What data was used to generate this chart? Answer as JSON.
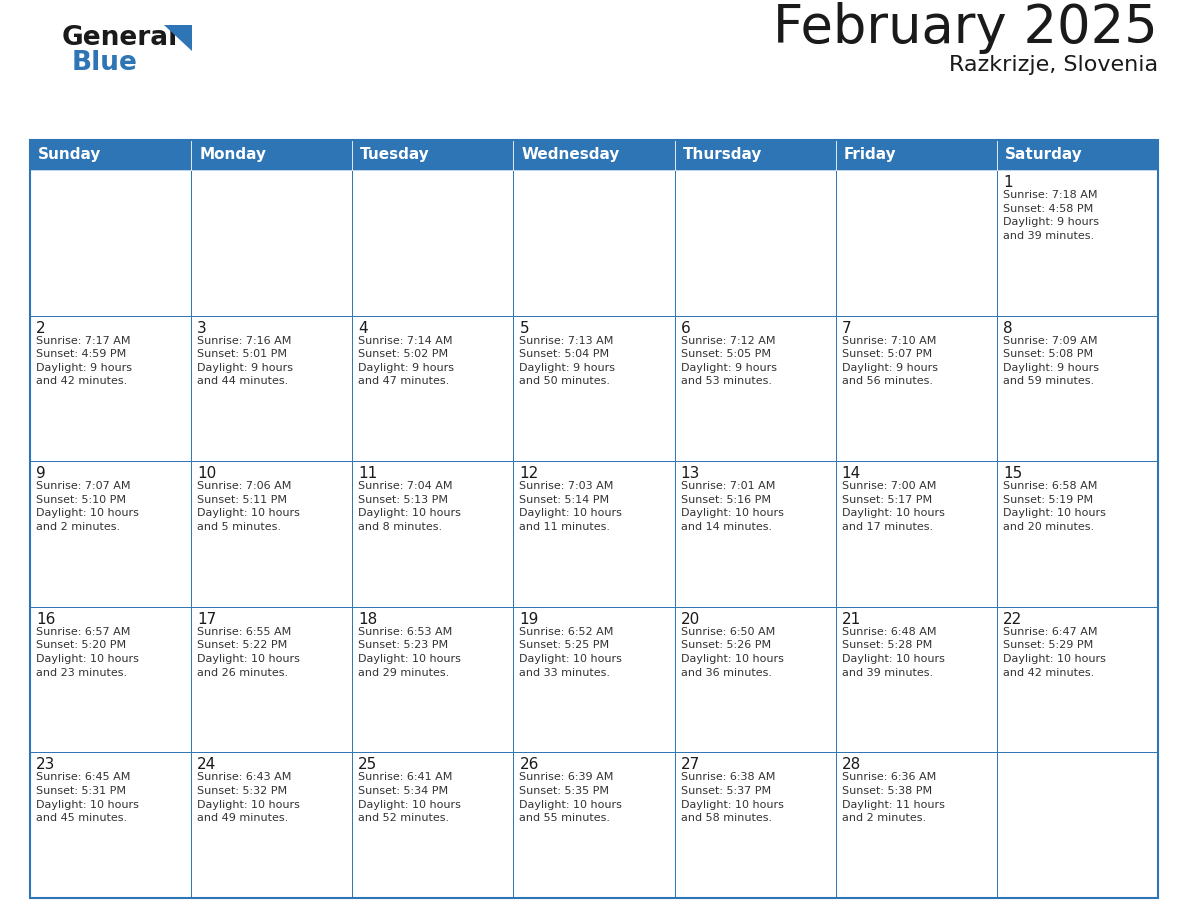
{
  "title": "February 2025",
  "subtitle": "Razkrizje, Slovenia",
  "header_bg": "#2E75B6",
  "header_text_color": "#FFFFFF",
  "border_color": "#2E75B6",
  "cell_bg": "#FFFFFF",
  "text_color": "#333333",
  "day_num_color": "#1a1a1a",
  "days_of_week": [
    "Sunday",
    "Monday",
    "Tuesday",
    "Wednesday",
    "Thursday",
    "Friday",
    "Saturday"
  ],
  "calendar_data": [
    [
      {
        "day": "",
        "info": ""
      },
      {
        "day": "",
        "info": ""
      },
      {
        "day": "",
        "info": ""
      },
      {
        "day": "",
        "info": ""
      },
      {
        "day": "",
        "info": ""
      },
      {
        "day": "",
        "info": ""
      },
      {
        "day": "1",
        "info": "Sunrise: 7:18 AM\nSunset: 4:58 PM\nDaylight: 9 hours\nand 39 minutes."
      }
    ],
    [
      {
        "day": "2",
        "info": "Sunrise: 7:17 AM\nSunset: 4:59 PM\nDaylight: 9 hours\nand 42 minutes."
      },
      {
        "day": "3",
        "info": "Sunrise: 7:16 AM\nSunset: 5:01 PM\nDaylight: 9 hours\nand 44 minutes."
      },
      {
        "day": "4",
        "info": "Sunrise: 7:14 AM\nSunset: 5:02 PM\nDaylight: 9 hours\nand 47 minutes."
      },
      {
        "day": "5",
        "info": "Sunrise: 7:13 AM\nSunset: 5:04 PM\nDaylight: 9 hours\nand 50 minutes."
      },
      {
        "day": "6",
        "info": "Sunrise: 7:12 AM\nSunset: 5:05 PM\nDaylight: 9 hours\nand 53 minutes."
      },
      {
        "day": "7",
        "info": "Sunrise: 7:10 AM\nSunset: 5:07 PM\nDaylight: 9 hours\nand 56 minutes."
      },
      {
        "day": "8",
        "info": "Sunrise: 7:09 AM\nSunset: 5:08 PM\nDaylight: 9 hours\nand 59 minutes."
      }
    ],
    [
      {
        "day": "9",
        "info": "Sunrise: 7:07 AM\nSunset: 5:10 PM\nDaylight: 10 hours\nand 2 minutes."
      },
      {
        "day": "10",
        "info": "Sunrise: 7:06 AM\nSunset: 5:11 PM\nDaylight: 10 hours\nand 5 minutes."
      },
      {
        "day": "11",
        "info": "Sunrise: 7:04 AM\nSunset: 5:13 PM\nDaylight: 10 hours\nand 8 minutes."
      },
      {
        "day": "12",
        "info": "Sunrise: 7:03 AM\nSunset: 5:14 PM\nDaylight: 10 hours\nand 11 minutes."
      },
      {
        "day": "13",
        "info": "Sunrise: 7:01 AM\nSunset: 5:16 PM\nDaylight: 10 hours\nand 14 minutes."
      },
      {
        "day": "14",
        "info": "Sunrise: 7:00 AM\nSunset: 5:17 PM\nDaylight: 10 hours\nand 17 minutes."
      },
      {
        "day": "15",
        "info": "Sunrise: 6:58 AM\nSunset: 5:19 PM\nDaylight: 10 hours\nand 20 minutes."
      }
    ],
    [
      {
        "day": "16",
        "info": "Sunrise: 6:57 AM\nSunset: 5:20 PM\nDaylight: 10 hours\nand 23 minutes."
      },
      {
        "day": "17",
        "info": "Sunrise: 6:55 AM\nSunset: 5:22 PM\nDaylight: 10 hours\nand 26 minutes."
      },
      {
        "day": "18",
        "info": "Sunrise: 6:53 AM\nSunset: 5:23 PM\nDaylight: 10 hours\nand 29 minutes."
      },
      {
        "day": "19",
        "info": "Sunrise: 6:52 AM\nSunset: 5:25 PM\nDaylight: 10 hours\nand 33 minutes."
      },
      {
        "day": "20",
        "info": "Sunrise: 6:50 AM\nSunset: 5:26 PM\nDaylight: 10 hours\nand 36 minutes."
      },
      {
        "day": "21",
        "info": "Sunrise: 6:48 AM\nSunset: 5:28 PM\nDaylight: 10 hours\nand 39 minutes."
      },
      {
        "day": "22",
        "info": "Sunrise: 6:47 AM\nSunset: 5:29 PM\nDaylight: 10 hours\nand 42 minutes."
      }
    ],
    [
      {
        "day": "23",
        "info": "Sunrise: 6:45 AM\nSunset: 5:31 PM\nDaylight: 10 hours\nand 45 minutes."
      },
      {
        "day": "24",
        "info": "Sunrise: 6:43 AM\nSunset: 5:32 PM\nDaylight: 10 hours\nand 49 minutes."
      },
      {
        "day": "25",
        "info": "Sunrise: 6:41 AM\nSunset: 5:34 PM\nDaylight: 10 hours\nand 52 minutes."
      },
      {
        "day": "26",
        "info": "Sunrise: 6:39 AM\nSunset: 5:35 PM\nDaylight: 10 hours\nand 55 minutes."
      },
      {
        "day": "27",
        "info": "Sunrise: 6:38 AM\nSunset: 5:37 PM\nDaylight: 10 hours\nand 58 minutes."
      },
      {
        "day": "28",
        "info": "Sunrise: 6:36 AM\nSunset: 5:38 PM\nDaylight: 11 hours\nand 2 minutes."
      },
      {
        "day": "",
        "info": ""
      }
    ]
  ],
  "logo_color_general": "#1a1a1a",
  "logo_color_blue": "#2E75B6",
  "logo_triangle_color": "#2E75B6",
  "title_color": "#1a1a1a",
  "subtitle_color": "#1a1a1a",
  "title_fontsize": 38,
  "subtitle_fontsize": 16,
  "header_fontsize": 11,
  "day_num_fontsize": 11,
  "info_fontsize": 8
}
